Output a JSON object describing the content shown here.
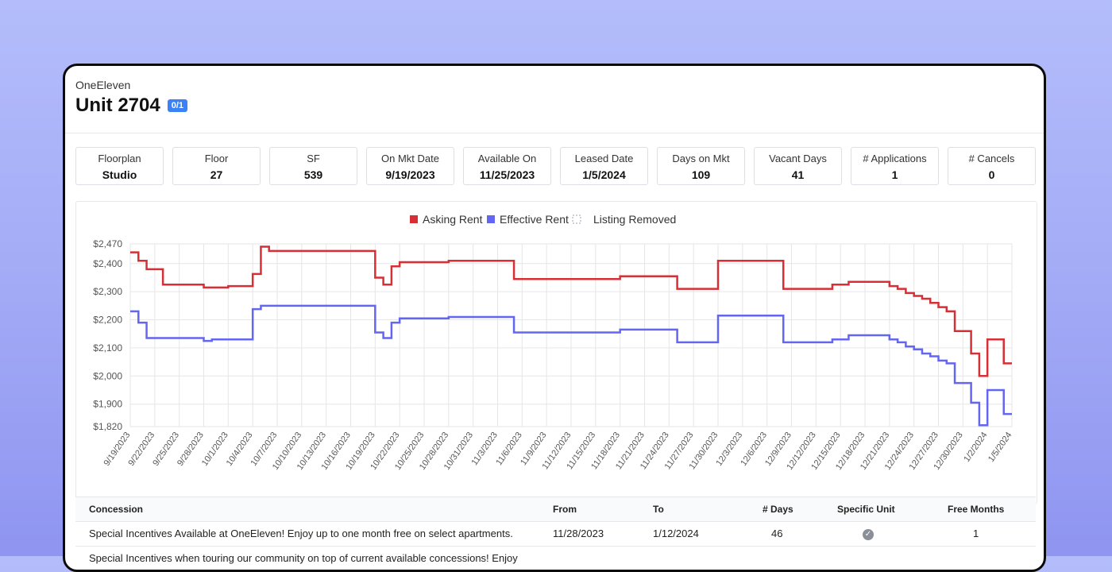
{
  "header": {
    "property": "OneEleven",
    "unit": "Unit 2704",
    "badge": "0/1"
  },
  "stats": [
    {
      "label": "Floorplan",
      "value": "Studio"
    },
    {
      "label": "Floor",
      "value": "27"
    },
    {
      "label": "SF",
      "value": "539"
    },
    {
      "label": "On Mkt Date",
      "value": "9/19/2023"
    },
    {
      "label": "Available On",
      "value": "11/25/2023"
    },
    {
      "label": "Leased Date",
      "value": "1/5/2024"
    },
    {
      "label": "Days on Mkt",
      "value": "109"
    },
    {
      "label": "Vacant Days",
      "value": "41"
    },
    {
      "label": "# Applications",
      "value": "1"
    },
    {
      "label": "# Cancels",
      "value": "0"
    }
  ],
  "chart_data": {
    "type": "line",
    "step": true,
    "x_start": "9/19/2023",
    "x_end": "1/5/2024",
    "x_tick_labels": [
      "9/19/2023",
      "9/22/2023",
      "9/25/2023",
      "9/28/2023",
      "10/1/2023",
      "10/4/2023",
      "10/7/2023",
      "10/10/2023",
      "10/13/2023",
      "10/16/2023",
      "10/19/2023",
      "10/22/2023",
      "10/25/2023",
      "10/28/2023",
      "10/31/2023",
      "11/3/2023",
      "11/6/2023",
      "11/9/2023",
      "11/12/2023",
      "11/15/2023",
      "11/18/2023",
      "11/21/2023",
      "11/24/2023",
      "11/27/2023",
      "11/30/2023",
      "12/3/2023",
      "12/6/2023",
      "12/9/2023",
      "12/12/2023",
      "12/15/2023",
      "12/18/2023",
      "12/21/2023",
      "12/24/2023",
      "12/27/2023",
      "12/30/2023",
      "1/2/2024",
      "1/5/2024"
    ],
    "y_tick_labels": [
      "$2,470",
      "$2,400",
      "$2,300",
      "$2,200",
      "$2,100",
      "$2,000",
      "$1,900",
      "$1,820"
    ],
    "y_ticks": [
      2470,
      2400,
      2300,
      2200,
      2100,
      2000,
      1900,
      1820
    ],
    "ylim": [
      1820,
      2470
    ],
    "grid": true,
    "legend_position": "top",
    "legend": [
      {
        "name": "Asking Rent",
        "color": "#d62f35"
      },
      {
        "name": "Effective Rent",
        "color": "#6366f1"
      },
      {
        "name": "Listing Removed",
        "color": "#9ca3af"
      }
    ],
    "series": [
      {
        "name": "Asking Rent",
        "color": "#d62f35",
        "points": [
          [
            "9/19/2023",
            2440
          ],
          [
            "9/20/2023",
            2410
          ],
          [
            "9/21/2023",
            2380
          ],
          [
            "9/23/2023",
            2325
          ],
          [
            "9/28/2023",
            2315
          ],
          [
            "10/1/2023",
            2320
          ],
          [
            "10/4/2023",
            2363
          ],
          [
            "10/5/2023",
            2460
          ],
          [
            "10/6/2023",
            2445
          ],
          [
            "10/19/2023",
            2350
          ],
          [
            "10/20/2023",
            2325
          ],
          [
            "10/21/2023",
            2390
          ],
          [
            "10/22/2023",
            2405
          ],
          [
            "10/28/2023",
            2410
          ],
          [
            "11/5/2023",
            2345
          ],
          [
            "11/18/2023",
            2355
          ],
          [
            "11/25/2023",
            2310
          ],
          [
            "11/30/2023",
            2410
          ],
          [
            "12/8/2023",
            2310
          ],
          [
            "12/14/2023",
            2325
          ],
          [
            "12/16/2023",
            2335
          ],
          [
            "12/21/2023",
            2320
          ],
          [
            "12/22/2023",
            2310
          ],
          [
            "12/23/2023",
            2295
          ],
          [
            "12/24/2023",
            2285
          ],
          [
            "12/25/2023",
            2275
          ],
          [
            "12/26/2023",
            2260
          ],
          [
            "12/27/2023",
            2245
          ],
          [
            "12/28/2023",
            2230
          ],
          [
            "12/29/2023",
            2160
          ],
          [
            "12/31/2023",
            2080
          ],
          [
            "1/1/2024",
            2000
          ],
          [
            "1/2/2024",
            2130
          ],
          [
            "1/4/2024",
            2045
          ],
          [
            "1/5/2024",
            2045
          ]
        ]
      },
      {
        "name": "Effective Rent",
        "color": "#6366f1",
        "points": [
          [
            "9/19/2023",
            2230
          ],
          [
            "9/20/2023",
            2190
          ],
          [
            "9/21/2023",
            2135
          ],
          [
            "9/28/2023",
            2125
          ],
          [
            "9/29/2023",
            2130
          ],
          [
            "10/4/2023",
            2238
          ],
          [
            "10/5/2023",
            2250
          ],
          [
            "10/19/2023",
            2155
          ],
          [
            "10/20/2023",
            2135
          ],
          [
            "10/21/2023",
            2190
          ],
          [
            "10/22/2023",
            2205
          ],
          [
            "10/28/2023",
            2210
          ],
          [
            "11/5/2023",
            2155
          ],
          [
            "11/18/2023",
            2165
          ],
          [
            "11/25/2023",
            2120
          ],
          [
            "11/30/2023",
            2215
          ],
          [
            "12/8/2023",
            2120
          ],
          [
            "12/14/2023",
            2130
          ],
          [
            "12/16/2023",
            2145
          ],
          [
            "12/21/2023",
            2130
          ],
          [
            "12/22/2023",
            2120
          ],
          [
            "12/23/2023",
            2105
          ],
          [
            "12/24/2023",
            2095
          ],
          [
            "12/25/2023",
            2080
          ],
          [
            "12/26/2023",
            2070
          ],
          [
            "12/27/2023",
            2055
          ],
          [
            "12/28/2023",
            2045
          ],
          [
            "12/29/2023",
            1975
          ],
          [
            "12/31/2023",
            1905
          ],
          [
            "1/1/2024",
            1825
          ],
          [
            "1/2/2024",
            1950
          ],
          [
            "1/4/2024",
            1865
          ],
          [
            "1/5/2024",
            1865
          ]
        ]
      }
    ]
  },
  "concessions": {
    "headers": [
      "Concession",
      "From",
      "To",
      "# Days",
      "Specific Unit",
      "Free Months"
    ],
    "rows": [
      {
        "concession": "Special Incentives Available at OneEleven! Enjoy up to one month free on select apartments.",
        "from": "11/28/2023",
        "to": "1/12/2024",
        "days": "46",
        "specific_unit": "check",
        "free_months": "1"
      },
      {
        "concession": "Special Incentives when touring our community on top of current available concessions! Enjoy",
        "from": "",
        "to": "",
        "days": "",
        "specific_unit": "",
        "free_months": ""
      }
    ]
  }
}
